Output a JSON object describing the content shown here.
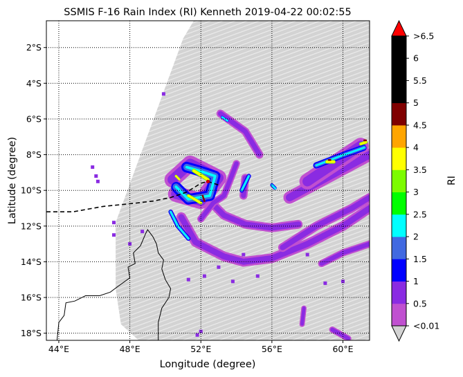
{
  "chart_data": {
    "type": "heatmap",
    "title": "SSMIS F-16 Rain Index (RI) Kenneth 2019-04-22 00:02:55",
    "xlabel": "Longitude (degree)",
    "ylabel": "Latitude (degree)",
    "xlim": [
      43.3,
      61.5
    ],
    "ylim": [
      -18.4,
      -0.5
    ],
    "x_ticks": [
      {
        "value": 44,
        "label": "44°E"
      },
      {
        "value": 48,
        "label": "48°E"
      },
      {
        "value": 52,
        "label": "52°E"
      },
      {
        "value": 56,
        "label": "56°E"
      },
      {
        "value": 60,
        "label": "60°E"
      }
    ],
    "y_ticks": [
      {
        "value": -2,
        "label": "2°S"
      },
      {
        "value": -4,
        "label": "4°S"
      },
      {
        "value": -6,
        "label": "6°S"
      },
      {
        "value": -8,
        "label": "8°S"
      },
      {
        "value": -10,
        "label": "10°S"
      },
      {
        "value": -12,
        "label": "12°S"
      },
      {
        "value": -14,
        "label": "14°S"
      },
      {
        "value": -16,
        "label": "16°S"
      },
      {
        "value": -18,
        "label": "18°S"
      }
    ],
    "grid": "dotted",
    "colorbar": {
      "label": "RI",
      "over_color": "#ff0000",
      "under_color": "#d3d3d3",
      "bins": [
        {
          "label": "<0.01",
          "color": "#c050d0"
        },
        {
          "label": "0.5",
          "color": "#8a2be2"
        },
        {
          "label": "1",
          "color": "#0000ff"
        },
        {
          "label": "1.5",
          "color": "#4169e1"
        },
        {
          "label": "2",
          "color": "#00ffff"
        },
        {
          "label": "2.5",
          "color": "#00ff00"
        },
        {
          "label": "3",
          "color": "#7cfc00"
        },
        {
          "label": "3.5",
          "color": "#ffff00"
        },
        {
          "label": "4",
          "color": "#ffa500"
        },
        {
          "label": "4.5",
          "color": "#800000"
        },
        {
          "label": "5",
          "color": "#000000"
        },
        {
          "label": "5.5",
          "color": "#000000"
        },
        {
          "label": "6",
          "color": "#000000"
        }
      ],
      "top_label": ">6.5"
    },
    "swath_color": "#d3d3d3",
    "swath_lonlat": [
      [
        47.2,
        -11.8
      ],
      [
        51.0,
        -1.5
      ],
      [
        51.9,
        0
      ],
      [
        55.0,
        0
      ],
      [
        56.3,
        -0.5
      ],
      [
        61.5,
        -0.5
      ],
      [
        61.5,
        -18.4
      ],
      [
        48.5,
        -18.4
      ],
      [
        47.5,
        -17.5
      ],
      [
        47.2,
        -15.5
      ]
    ],
    "track": [
      [
        43.3,
        -11.2
      ],
      [
        44.8,
        -11.2
      ],
      [
        46.5,
        -10.9
      ],
      [
        48.0,
        -10.75
      ],
      [
        49.3,
        -10.6
      ],
      [
        50.3,
        -10.4
      ],
      [
        51.2,
        -10.1
      ],
      [
        52.0,
        -9.6
      ],
      [
        52.4,
        -9.5
      ],
      [
        53.0,
        -9.7
      ]
    ],
    "storm_center": [
      52.4,
      -9.5
    ],
    "coast": [
      [
        49.6,
        -18.4
      ],
      [
        49.6,
        -17.4
      ],
      [
        49.8,
        -16.6
      ],
      [
        50.2,
        -16.0
      ],
      [
        50.3,
        -15.5
      ],
      [
        50.0,
        -15.0
      ],
      [
        49.8,
        -14.4
      ],
      [
        49.9,
        -13.9
      ],
      [
        49.6,
        -13.5
      ],
      [
        49.5,
        -13.0
      ],
      [
        49.3,
        -12.6
      ],
      [
        49.0,
        -12.2
      ],
      [
        48.9,
        -12.4
      ],
      [
        48.6,
        -13.1
      ],
      [
        48.2,
        -13.5
      ],
      [
        48.3,
        -14.1
      ],
      [
        47.9,
        -14.3
      ],
      [
        48.0,
        -14.9
      ],
      [
        47.3,
        -15.4
      ],
      [
        46.9,
        -15.7
      ],
      [
        46.3,
        -15.9
      ],
      [
        45.5,
        -15.9
      ],
      [
        44.9,
        -16.2
      ],
      [
        44.4,
        -16.3
      ],
      [
        44.3,
        -17.0
      ],
      [
        44.0,
        -17.4
      ],
      [
        43.9,
        -18.4
      ]
    ],
    "rain": [
      {
        "cat": "lt",
        "c": [
          [
            53.1,
            -5.7
          ],
          [
            54.5,
            -6.7
          ],
          [
            55.3,
            -8.0
          ]
        ],
        "w": 0.45
      },
      {
        "cat": "lt",
        "c": [
          [
            52.2,
            -10.3
          ],
          [
            53.3,
            -11.4
          ],
          [
            54.5,
            -11.9
          ],
          [
            56.0,
            -12.1
          ],
          [
            57.5,
            -11.9
          ]
        ],
        "w": 0.5
      },
      {
        "cat": "lt",
        "c": [
          [
            50.9,
            -11.5
          ],
          [
            51.7,
            -12.9
          ],
          [
            53.3,
            -13.7
          ],
          [
            54.4,
            -14.0
          ],
          [
            56.0,
            -13.8
          ],
          [
            58.0,
            -13.0
          ],
          [
            60.0,
            -12.0
          ],
          [
            61.5,
            -11.0
          ]
        ],
        "w": 0.55
      },
      {
        "cat": "lt",
        "c": [
          [
            56.6,
            -13.2
          ],
          [
            58.5,
            -12.0
          ],
          [
            60.5,
            -11.0
          ],
          [
            61.5,
            -10.4
          ]
        ],
        "w": 0.5
      },
      {
        "cat": "lt",
        "c": [
          [
            57.0,
            -10.4
          ],
          [
            58.5,
            -9.6
          ],
          [
            60.0,
            -8.8
          ],
          [
            61.5,
            -8.0
          ]
        ],
        "w": 0.7
      },
      {
        "cat": "lt",
        "c": [
          [
            58.8,
            -14.1
          ],
          [
            60.0,
            -13.5
          ],
          [
            61.5,
            -13.0
          ]
        ],
        "w": 0.4
      },
      {
        "cat": "lt",
        "c": [
          [
            58.0,
            -9.5
          ],
          [
            59.5,
            -8.5
          ],
          [
            61.0,
            -7.5
          ]
        ],
        "w": 0.9
      },
      {
        "cat": "lt",
        "c": [
          [
            52.0,
            -11.6
          ],
          [
            52.7,
            -10.7
          ],
          [
            53.3,
            -10.3
          ],
          [
            54.0,
            -8.5
          ]
        ],
        "w": 0.4
      },
      {
        "cat": "lt",
        "c": [
          [
            54.5,
            -9.3
          ],
          [
            54.4,
            -10.3
          ]
        ],
        "w": 0.45
      },
      {
        "cat": "lt",
        "c": [
          [
            50.4,
            -9.4
          ],
          [
            51.4,
            -8.5
          ],
          [
            52.0,
            -8.8
          ],
          [
            53.0,
            -9.3
          ],
          [
            52.0,
            -10.6
          ],
          [
            50.6,
            -10.2
          ]
        ],
        "w": 0.9
      },
      {
        "cat": "lt",
        "c": [
          [
            57.8,
            -16.6
          ],
          [
            57.7,
            -17.5
          ]
        ],
        "w": 0.3
      },
      {
        "cat": "lt",
        "c": [
          [
            59.4,
            -17.8
          ],
          [
            60.3,
            -18.3
          ]
        ],
        "w": 0.35
      },
      {
        "cat": "md",
        "c": [
          [
            51.2,
            -8.7
          ],
          [
            51.9,
            -8.9
          ],
          [
            52.8,
            -9.2
          ],
          [
            52.5,
            -10.3
          ],
          [
            51.3,
            -10.5
          ],
          [
            50.6,
            -9.8
          ]
        ],
        "w": 0.6
      },
      {
        "cat": "md",
        "c": [
          [
            54.7,
            -9.2
          ],
          [
            54.3,
            -10.0
          ]
        ],
        "w": 0.25
      },
      {
        "cat": "md",
        "c": [
          [
            58.5,
            -8.6
          ],
          [
            59.8,
            -8.1
          ],
          [
            61.2,
            -7.6
          ]
        ],
        "w": 0.35
      },
      {
        "cat": "md",
        "c": [
          [
            50.3,
            -11.2
          ],
          [
            50.7,
            -12.0
          ],
          [
            51.3,
            -12.7
          ]
        ],
        "w": 0.25
      },
      {
        "cat": "md",
        "c": [
          [
            56.0,
            -9.7
          ],
          [
            56.2,
            -9.9
          ]
        ],
        "w": 0.2
      },
      {
        "cat": "md",
        "c": [
          [
            53.2,
            -5.9
          ],
          [
            53.5,
            -6.1
          ]
        ],
        "w": 0.15
      },
      {
        "cat": "hv",
        "c": [
          [
            51.6,
            -8.9
          ],
          [
            52.4,
            -9.4
          ]
        ],
        "w": 0.22
      },
      {
        "cat": "hv",
        "c": [
          [
            51.3,
            -10.3
          ],
          [
            52.0,
            -10.7
          ]
        ],
        "w": 0.18
      },
      {
        "cat": "hv",
        "c": [
          [
            59.1,
            -8.4
          ],
          [
            59.5,
            -8.4
          ]
        ],
        "w": 0.2
      },
      {
        "cat": "hv",
        "c": [
          [
            61.0,
            -7.4
          ],
          [
            61.3,
            -7.3
          ]
        ],
        "w": 0.18
      },
      {
        "cat": "hv",
        "c": [
          [
            50.6,
            -9.2
          ],
          [
            50.8,
            -9.4
          ]
        ],
        "w": 0.14
      },
      {
        "cat": "xh",
        "c": [
          [
            52.1,
            -10.3
          ],
          [
            52.2,
            -10.6
          ]
        ],
        "w": 0.1
      },
      {
        "cat": "xh",
        "c": [
          [
            59.2,
            -8.3
          ],
          [
            59.3,
            -8.3
          ]
        ],
        "w": 0.1
      },
      {
        "cat": "xh",
        "c": [
          [
            61.2,
            -7.2
          ],
          [
            61.3,
            -7.2
          ]
        ],
        "w": 0.1
      }
    ],
    "rain_dots": [
      [
        45.9,
        -8.7
      ],
      [
        46.1,
        -9.2
      ],
      [
        46.2,
        -9.5
      ],
      [
        49.9,
        -4.6
      ],
      [
        47.1,
        -11.8
      ],
      [
        47.1,
        -12.5
      ],
      [
        48.7,
        -12.3
      ],
      [
        48.0,
        -13.0
      ],
      [
        54.4,
        -13.6
      ],
      [
        53.0,
        -14.3
      ],
      [
        53.8,
        -15.1
      ],
      [
        51.3,
        -15.0
      ],
      [
        52.2,
        -14.8
      ],
      [
        55.2,
        -14.8
      ],
      [
        58.0,
        -13.6
      ],
      [
        60.0,
        -15.1
      ],
      [
        59.0,
        -15.2
      ],
      [
        52.0,
        -17.9
      ],
      [
        51.8,
        -18.1
      ]
    ]
  }
}
